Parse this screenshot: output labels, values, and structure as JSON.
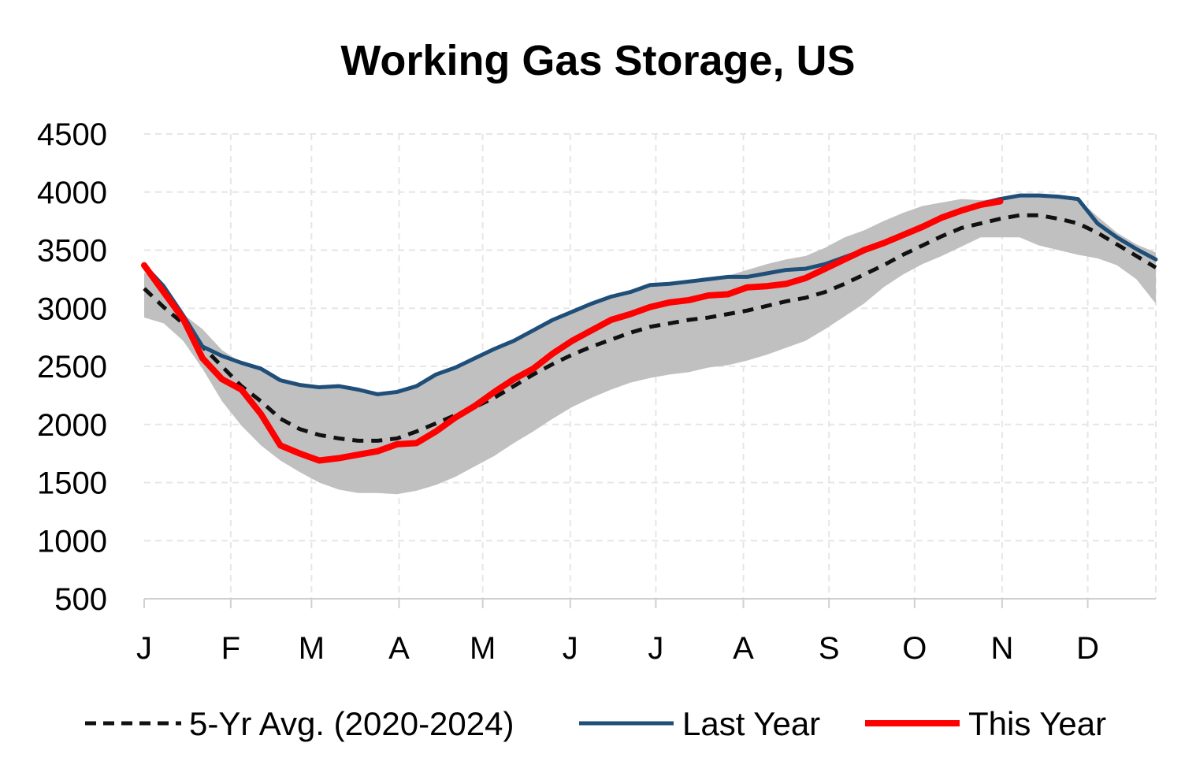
{
  "chart_data": {
    "type": "line",
    "title": "Working Gas Storage, US",
    "xlabel": "",
    "ylabel": "",
    "ylim": [
      500,
      4500
    ],
    "yticks": [
      500,
      1000,
      1500,
      2000,
      2500,
      3000,
      3500,
      4000,
      4500
    ],
    "x_ticks": [
      {
        "label": "J",
        "week": 0
      },
      {
        "label": "F",
        "week": 4.45
      },
      {
        "label": "M",
        "week": 8.6
      },
      {
        "label": "A",
        "week": 13.1
      },
      {
        "label": "M",
        "week": 17.4
      },
      {
        "label": "J",
        "week": 21.9
      },
      {
        "label": "J",
        "week": 26.3
      },
      {
        "label": "A",
        "week": 30.8
      },
      {
        "label": "S",
        "week": 35.2
      },
      {
        "label": "O",
        "week": 39.6
      },
      {
        "label": "N",
        "week": 44.1
      },
      {
        "label": "D",
        "week": 48.5
      }
    ],
    "xlim_weeks": [
      0,
      52
    ],
    "grid": true,
    "legend_position": "bottom",
    "band": {
      "color": "#c0c0c0",
      "max": [
        3310,
        3180,
        2950,
        2820,
        2640,
        2530,
        2470,
        2360,
        2350,
        2330,
        2330,
        2310,
        2260,
        2280,
        2330,
        2430,
        2490,
        2570,
        2650,
        2720,
        2810,
        2900,
        2970,
        3040,
        3100,
        3140,
        3200,
        3210,
        3230,
        3250,
        3280,
        3330,
        3380,
        3420,
        3450,
        3520,
        3610,
        3670,
        3750,
        3820,
        3880,
        3910,
        3940,
        3930,
        3940,
        3970,
        3970,
        3960,
        3940,
        3790,
        3650,
        3550,
        3480
      ],
      "min": [
        2920,
        2870,
        2720,
        2480,
        2200,
        1990,
        1820,
        1690,
        1590,
        1500,
        1440,
        1410,
        1410,
        1400,
        1430,
        1480,
        1550,
        1640,
        1730,
        1840,
        1940,
        2050,
        2150,
        2230,
        2300,
        2360,
        2400,
        2430,
        2450,
        2490,
        2510,
        2550,
        2600,
        2660,
        2720,
        2820,
        2930,
        3040,
        3180,
        3290,
        3380,
        3450,
        3530,
        3610,
        3610,
        3610,
        3540,
        3500,
        3460,
        3430,
        3370,
        3250,
        3040
      ]
    },
    "series": [
      {
        "name": "5-Yr Avg. (2020-2024)",
        "color": "#111111",
        "style": "dashed",
        "values": [
          3170,
          3010,
          2870,
          2670,
          2500,
          2330,
          2200,
          2050,
          1960,
          1910,
          1880,
          1860,
          1860,
          1880,
          1940,
          2010,
          2080,
          2150,
          2230,
          2330,
          2430,
          2520,
          2600,
          2670,
          2730,
          2790,
          2840,
          2870,
          2900,
          2920,
          2950,
          2980,
          3020,
          3060,
          3090,
          3140,
          3210,
          3290,
          3370,
          3460,
          3540,
          3620,
          3690,
          3730,
          3770,
          3800,
          3800,
          3770,
          3730,
          3650,
          3550,
          3450,
          3350
        ]
      },
      {
        "name": "Last Year",
        "color": "#1f4e79",
        "style": "solid",
        "values": [
          3370,
          3190,
          2940,
          2670,
          2590,
          2530,
          2480,
          2380,
          2340,
          2320,
          2330,
          2300,
          2260,
          2280,
          2330,
          2430,
          2490,
          2570,
          2650,
          2720,
          2810,
          2900,
          2970,
          3040,
          3100,
          3140,
          3200,
          3210,
          3230,
          3250,
          3270,
          3270,
          3300,
          3330,
          3340,
          3380,
          3440,
          3500,
          3560,
          3630,
          3700,
          3780,
          3840,
          3900,
          3940,
          3970,
          3970,
          3960,
          3940,
          3730,
          3610,
          3510,
          3420
        ]
      },
      {
        "name": "This Year",
        "color": "#ff0000",
        "style": "solid",
        "values": [
          3370,
          3140,
          2910,
          2570,
          2390,
          2300,
          2090,
          1820,
          1750,
          1690,
          1710,
          1740,
          1770,
          1830,
          1840,
          1940,
          2060,
          2160,
          2280,
          2390,
          2480,
          2610,
          2720,
          2810,
          2900,
          2950,
          3010,
          3050,
          3070,
          3110,
          3120,
          3180,
          3190,
          3210,
          3260,
          3340,
          3420,
          3500,
          3560,
          3630,
          3700,
          3780,
          3840,
          3890,
          3920
        ]
      }
    ]
  }
}
